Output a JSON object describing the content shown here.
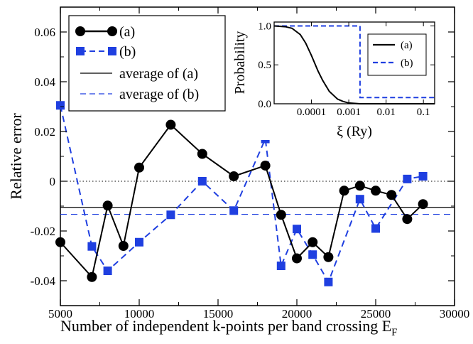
{
  "colors": {
    "series_a": "#000000",
    "series_b": "#1f3fe0",
    "zero_line": "#000000"
  },
  "chart_data": [
    {
      "type": "line",
      "xlabel": "Number of independent k-points per band crossing E",
      "xlabel_sub": "F",
      "ylabel": "Relative error",
      "xlim": [
        5000,
        30000
      ],
      "ylim": [
        -0.05,
        0.07
      ],
      "xticks": [
        5000,
        10000,
        15000,
        20000,
        25000,
        30000
      ],
      "xtick_labels": [
        "5000",
        "10000",
        "15000",
        "20000",
        "25000",
        "30000"
      ],
      "yticks": [
        -0.04,
        -0.02,
        0,
        0.02,
        0.04,
        0.06
      ],
      "ytick_labels": [
        "-0.04",
        "-0.02",
        "0",
        "0.02",
        "0.04",
        "0.06"
      ],
      "zero_line": "dotted",
      "legend_position": "top-left",
      "series": [
        {
          "name": "(a)",
          "style": "solid",
          "marker": "circle",
          "x": [
            5000,
            7000,
            8000,
            9000,
            10000,
            12000,
            14000,
            16000,
            18000,
            19000,
            20000,
            21000,
            22000,
            23000,
            24000,
            25000,
            26000,
            27000,
            28000
          ],
          "y": [
            -0.0245,
            -0.0385,
            -0.0098,
            -0.026,
            0.0055,
            0.0227,
            0.011,
            0.002,
            0.0063,
            -0.0135,
            -0.031,
            -0.0245,
            -0.0305,
            -0.0038,
            -0.0018,
            -0.0038,
            -0.0055,
            -0.0152,
            -0.0092
          ]
        },
        {
          "name": "(b)",
          "style": "dashed",
          "marker": "square",
          "x": [
            5000,
            7000,
            8000,
            10000,
            12000,
            14000,
            16000,
            18000,
            19000,
            20000,
            21000,
            22000,
            24000,
            25000,
            27000,
            28000
          ],
          "y": [
            0.0305,
            -0.0262,
            -0.036,
            -0.0245,
            -0.0135,
            0.0,
            -0.0118,
            0.017,
            -0.034,
            -0.0192,
            -0.0295,
            -0.0405,
            -0.0072,
            -0.019,
            0.0009,
            0.002
          ]
        },
        {
          "name": "average of (a)",
          "style": "solid",
          "marker": "none",
          "y_constant": -0.0105
        },
        {
          "name": "average of (b)",
          "style": "dashed",
          "marker": "none",
          "y_constant": -0.0133
        }
      ]
    },
    {
      "type": "line",
      "xlabel": "ξ (Ry)",
      "ylabel": "Probability",
      "xscale": "log",
      "xlim": [
        1e-05,
        0.2
      ],
      "ylim": [
        0,
        1.05
      ],
      "xticks": [
        0.0001,
        0.001,
        0.01,
        0.1
      ],
      "xtick_labels": [
        "0.0001",
        "0.001",
        "0.01",
        "0.1"
      ],
      "yticks": [
        0,
        0.5,
        1.0
      ],
      "ytick_labels": [
        "0.0",
        "0.5",
        "1.0"
      ],
      "legend_position": "right",
      "series": [
        {
          "name": "(a)",
          "style": "solid",
          "x": [
            1e-05,
            2e-05,
            3e-05,
            5e-05,
            7e-05,
            0.0001,
            0.00015,
            0.0002,
            0.0003,
            0.0005,
            0.0007,
            0.001,
            0.002,
            0.005,
            0.2
          ],
          "y": [
            1.0,
            0.99,
            0.97,
            0.89,
            0.78,
            0.62,
            0.42,
            0.3,
            0.16,
            0.06,
            0.03,
            0.01,
            0.0,
            0.0,
            0.0
          ]
        },
        {
          "name": "(b)",
          "style": "dashed",
          "x": [
            1e-05,
            0.002,
            0.002,
            0.2
          ],
          "y": [
            1.0,
            1.0,
            0.08,
            0.08
          ]
        }
      ]
    }
  ]
}
